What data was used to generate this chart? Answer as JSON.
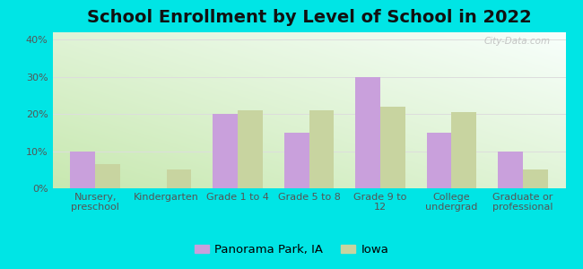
{
  "title": "School Enrollment by Level of School in 2022",
  "categories": [
    "Nursery,\npreschool",
    "Kindergarten",
    "Grade 1 to 4",
    "Grade 5 to 8",
    "Grade 9 to\n12",
    "College\nundergrad",
    "Graduate or\nprofessional"
  ],
  "panorama_values": [
    10,
    0,
    20,
    15,
    30,
    15,
    10
  ],
  "iowa_values": [
    6.5,
    5,
    21,
    21,
    22,
    20.5,
    5
  ],
  "bar_color_panorama": "#c9a0dc",
  "bar_color_iowa": "#c8d4a0",
  "background_color": "#00e5e5",
  "grad_top_left": "#c8e8b0",
  "grad_bottom_right": "#f8fffc",
  "ylim": [
    0,
    42
  ],
  "yticks": [
    0,
    10,
    20,
    30,
    40
  ],
  "legend_panorama": "Panorama Park, IA",
  "legend_iowa": "Iowa",
  "watermark": "City-Data.com",
  "title_fontsize": 14,
  "tick_fontsize": 8.0,
  "legend_fontsize": 9.5,
  "bar_width": 0.35,
  "grid_color": "#dddddd"
}
